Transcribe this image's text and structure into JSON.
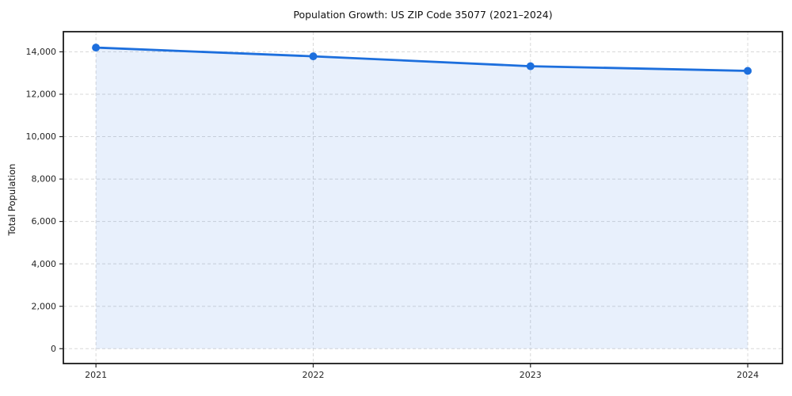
{
  "figure": {
    "title": "Population Growth: US ZIP Code 35077 (2021–2024)",
    "ylabel": "Total Population"
  },
  "chart_data": {
    "type": "line",
    "title": "Population Growth: US ZIP Code 35077 (2021–2024)",
    "xlabel": "",
    "ylabel": "Total Population",
    "x": [
      2021,
      2022,
      2023,
      2024
    ],
    "categories": [
      "2021",
      "2022",
      "2023",
      "2024"
    ],
    "series": [
      {
        "name": "Total Population",
        "values": [
          14200,
          13790,
          13320,
          13100
        ]
      }
    ],
    "xlim": [
      2020.85,
      2024.16
    ],
    "ylim": [
      -700,
      14950
    ],
    "yticks": [
      0,
      2000,
      4000,
      6000,
      8000,
      10000,
      12000,
      14000
    ],
    "ytick_labels": [
      "0",
      "2,000",
      "4,000",
      "6,000",
      "8,000",
      "10,000",
      "12,000",
      "14,000"
    ],
    "grid": true,
    "grid_style": "dashed",
    "legend_position": "none",
    "line_color": "#1d6fdd",
    "fill_color": "#1d6fdd",
    "fill_opacity": 0.1,
    "grid_color": "#d8d8d8",
    "spine_color": "#1a1a1a",
    "marker": "circle",
    "marker_radius": 5,
    "line_width": 2.8,
    "area": true,
    "area_baseline": 0
  }
}
